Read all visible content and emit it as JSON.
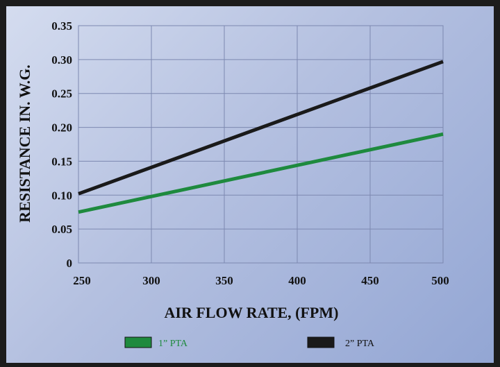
{
  "chart_data": {
    "type": "line",
    "xlabel": "AIR FLOW RATE, (FPM)",
    "ylabel": "RESISTANCE IN. W.G.",
    "xlim": [
      250,
      500
    ],
    "ylim": [
      0,
      0.35
    ],
    "x_ticks": [
      "250",
      "300",
      "350",
      "400",
      "450",
      "500"
    ],
    "y_ticks": [
      "0",
      "0.05",
      "0.10",
      "0.15",
      "0.20",
      "0.25",
      "0.30",
      "0.35"
    ],
    "grid": true,
    "legend_position": "bottom",
    "series": [
      {
        "name": "1” PTA",
        "color": "#1e8a3e",
        "x": [
          250,
          500
        ],
        "y": [
          0.075,
          0.19
        ]
      },
      {
        "name": "2” PTA",
        "color": "#1a1a1a",
        "x": [
          250,
          500
        ],
        "y": [
          0.102,
          0.297
        ]
      }
    ]
  }
}
